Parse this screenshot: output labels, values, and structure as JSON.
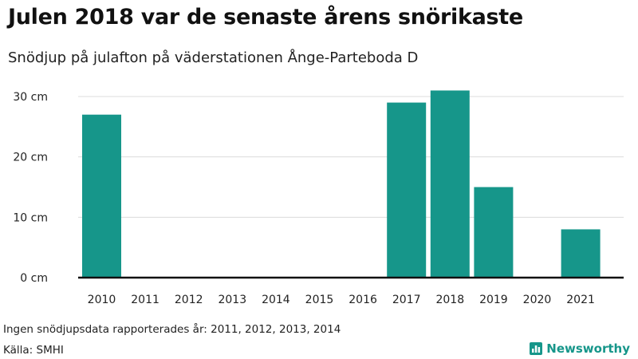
{
  "header": {
    "title": "Julen 2018 var de senaste årens snörikaste",
    "subtitle": "Snödjup på julafton på väderstationen Ånge-Parteboda D"
  },
  "footer": {
    "note": "Ingen snödjupsdata rapporterades år: 2011, 2012, 2013, 2014",
    "source": "Källa: SMHI",
    "brand": "Newsworthy"
  },
  "colors": {
    "bar": "#16968a",
    "brand": "#16968a",
    "grid": "#dcdcdc",
    "baseline": "#111111"
  },
  "chart_data": {
    "type": "bar",
    "categories": [
      "2010",
      "2011",
      "2012",
      "2013",
      "2014",
      "2015",
      "2016",
      "2017",
      "2018",
      "2019",
      "2020",
      "2021"
    ],
    "values": [
      27,
      0,
      0,
      0,
      0,
      0,
      0,
      29,
      31,
      15,
      0,
      8
    ],
    "yticks": [
      0,
      10,
      20,
      30
    ],
    "ytick_labels": [
      "0 cm",
      "10 cm",
      "20 cm",
      "30 cm"
    ],
    "ylim": [
      0,
      30
    ],
    "grid": true
  }
}
